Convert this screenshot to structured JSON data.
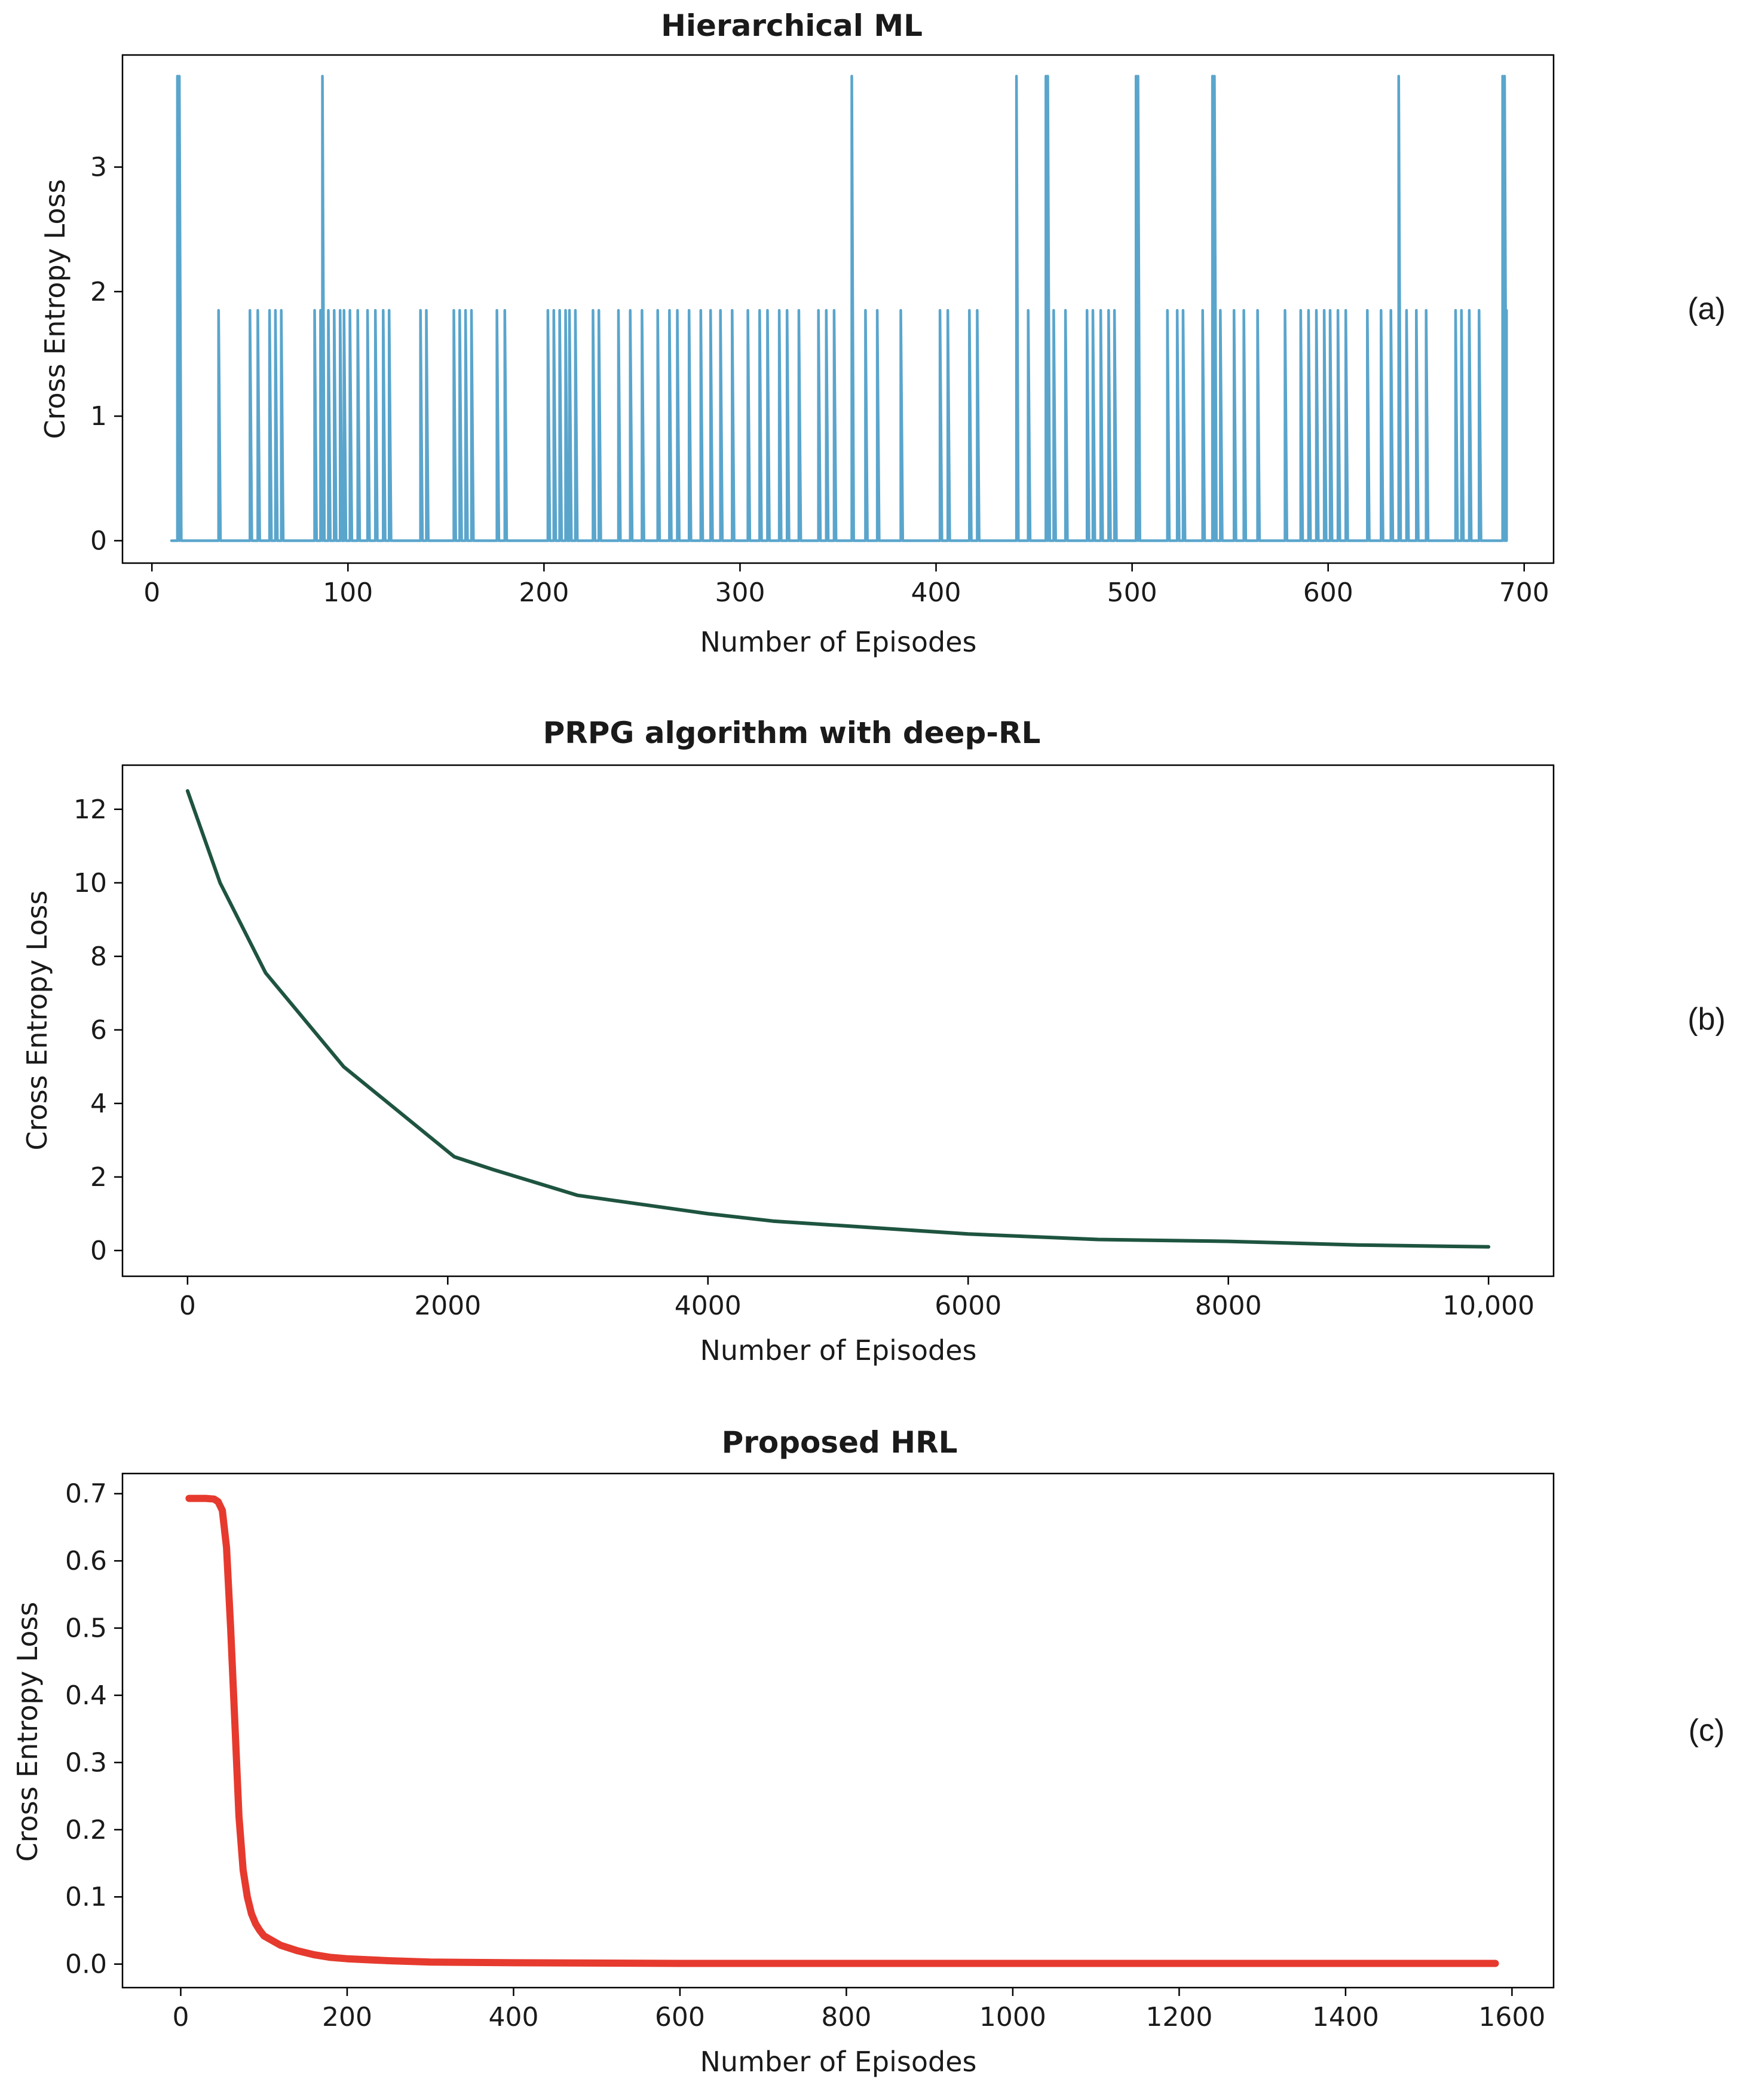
{
  "chart_data": [
    {
      "type": "line",
      "title": "Hierarchical ML",
      "panel_label": "(a)",
      "xlabel": "Number of Episodes",
      "ylabel": "Cross Entropy Loss",
      "xlim": [
        -15,
        715
      ],
      "ylim": [
        -0.18,
        3.9
      ],
      "xticks": [
        0,
        100,
        200,
        300,
        400,
        500,
        600,
        700
      ],
      "xtick_labels": [
        "0",
        "100",
        "200",
        "300",
        "400",
        "500",
        "600",
        "700"
      ],
      "yticks": [
        0,
        1,
        2,
        3
      ],
      "ytick_labels": [
        "0",
        "1",
        "2",
        "3"
      ],
      "grid": false,
      "color": "#5aa5cc",
      "line_width": 4.5,
      "x_range": [
        10,
        691
      ],
      "baseline": 0,
      "spikes": [
        [
          13,
          3.73
        ],
        [
          14,
          3.73
        ],
        [
          34,
          1.85
        ],
        [
          50,
          1.85
        ],
        [
          54,
          1.85
        ],
        [
          60,
          1.85
        ],
        [
          63,
          1.85
        ],
        [
          66,
          1.85
        ],
        [
          83,
          1.85
        ],
        [
          86,
          1.85
        ],
        [
          87,
          3.73
        ],
        [
          90,
          1.85
        ],
        [
          93,
          1.85
        ],
        [
          96,
          1.85
        ],
        [
          98,
          1.85
        ],
        [
          101,
          1.85
        ],
        [
          105,
          1.85
        ],
        [
          110,
          1.85
        ],
        [
          114,
          1.85
        ],
        [
          118,
          1.85
        ],
        [
          121,
          1.85
        ],
        [
          137,
          1.85
        ],
        [
          140,
          1.85
        ],
        [
          154,
          1.85
        ],
        [
          157,
          1.85
        ],
        [
          160,
          1.85
        ],
        [
          163,
          1.85
        ],
        [
          176,
          1.85
        ],
        [
          180,
          1.85
        ],
        [
          202,
          1.85
        ],
        [
          205,
          1.85
        ],
        [
          208,
          1.85
        ],
        [
          211,
          1.85
        ],
        [
          213,
          1.85
        ],
        [
          216,
          1.85
        ],
        [
          225,
          1.85
        ],
        [
          228,
          1.85
        ],
        [
          238,
          1.85
        ],
        [
          244,
          1.85
        ],
        [
          250,
          1.85
        ],
        [
          258,
          1.85
        ],
        [
          264,
          1.85
        ],
        [
          268,
          1.85
        ],
        [
          274,
          1.85
        ],
        [
          280,
          1.85
        ],
        [
          285,
          1.85
        ],
        [
          290,
          1.85
        ],
        [
          296,
          1.85
        ],
        [
          304,
          1.85
        ],
        [
          310,
          1.85
        ],
        [
          314,
          1.85
        ],
        [
          320,
          1.85
        ],
        [
          324,
          1.85
        ],
        [
          330,
          1.85
        ],
        [
          340,
          1.85
        ],
        [
          344,
          1.85
        ],
        [
          348,
          1.85
        ],
        [
          357,
          3.73
        ],
        [
          364,
          1.85
        ],
        [
          370,
          1.85
        ],
        [
          382,
          1.85
        ],
        [
          402,
          1.85
        ],
        [
          406,
          1.85
        ],
        [
          417,
          1.85
        ],
        [
          421,
          1.85
        ],
        [
          441,
          3.73
        ],
        [
          447,
          1.85
        ],
        [
          456,
          3.73
        ],
        [
          457,
          3.73
        ],
        [
          460,
          1.85
        ],
        [
          466,
          1.85
        ],
        [
          477,
          1.85
        ],
        [
          480,
          1.85
        ],
        [
          484,
          1.85
        ],
        [
          488,
          1.85
        ],
        [
          491,
          1.85
        ],
        [
          502,
          3.73
        ],
        [
          503,
          3.73
        ],
        [
          518,
          1.85
        ],
        [
          523,
          1.85
        ],
        [
          526,
          1.85
        ],
        [
          536,
          1.85
        ],
        [
          541,
          3.73
        ],
        [
          542,
          3.73
        ],
        [
          545,
          1.85
        ],
        [
          552,
          1.85
        ],
        [
          557,
          1.85
        ],
        [
          564,
          1.85
        ],
        [
          578,
          1.85
        ],
        [
          586,
          1.85
        ],
        [
          590,
          1.85
        ],
        [
          594,
          1.85
        ],
        [
          598,
          1.85
        ],
        [
          601,
          1.85
        ],
        [
          605,
          1.85
        ],
        [
          609,
          1.85
        ],
        [
          620,
          1.85
        ],
        [
          627,
          1.85
        ],
        [
          632,
          1.85
        ],
        [
          636,
          3.73
        ],
        [
          640,
          1.85
        ],
        [
          645,
          1.85
        ],
        [
          650,
          1.85
        ],
        [
          665,
          1.85
        ],
        [
          668,
          1.85
        ],
        [
          672,
          1.85
        ],
        [
          677,
          1.85
        ],
        [
          689,
          3.73
        ],
        [
          690,
          3.73
        ],
        [
          691,
          1.85
        ]
      ]
    },
    {
      "type": "line",
      "title": "PRPG algorithm with deep-RL",
      "panel_label": "(b)",
      "xlabel": "Number of Episodes",
      "ylabel": "Cross Entropy Loss",
      "xlim": [
        -500,
        10500
      ],
      "ylim": [
        -0.7,
        13.2
      ],
      "xticks": [
        0,
        2000,
        4000,
        6000,
        8000,
        10000
      ],
      "xtick_labels": [
        "0",
        "2000",
        "4000",
        "6000",
        "8000",
        "10,000"
      ],
      "yticks": [
        0,
        2,
        4,
        6,
        8,
        10,
        12
      ],
      "ytick_labels": [
        "0",
        "2",
        "4",
        "6",
        "8",
        "10",
        "12"
      ],
      "grid": false,
      "color": "#1e5440",
      "line_width": 6,
      "x": [
        0,
        250,
        600,
        1200,
        2050,
        2350,
        3000,
        4000,
        4500,
        6000,
        7000,
        8000,
        9000,
        10000
      ],
      "y": [
        12.5,
        10.0,
        7.55,
        5.0,
        2.55,
        2.2,
        1.5,
        1.0,
        0.8,
        0.45,
        0.3,
        0.25,
        0.15,
        0.1
      ]
    },
    {
      "type": "line",
      "title": "Proposed HRL",
      "panel_label": "(c)",
      "xlabel": "Number of Episodes",
      "ylabel": "Cross Entropy Loss",
      "xlim": [
        -70,
        1650
      ],
      "ylim": [
        -0.035,
        0.73
      ],
      "xticks": [
        0,
        200,
        400,
        600,
        800,
        1000,
        1200,
        1400,
        1600
      ],
      "xtick_labels": [
        "0",
        "200",
        "400",
        "600",
        "800",
        "1000",
        "1200",
        "1400",
        "1600"
      ],
      "yticks": [
        0.0,
        0.1,
        0.2,
        0.3,
        0.4,
        0.5,
        0.6,
        0.7
      ],
      "ytick_labels": [
        "0.0",
        "0.1",
        "0.2",
        "0.3",
        "0.4",
        "0.5",
        "0.6",
        "0.7"
      ],
      "grid": false,
      "color": "#e63a2e",
      "line_width": 12,
      "x": [
        10,
        20,
        30,
        40,
        45,
        50,
        55,
        60,
        65,
        70,
        75,
        80,
        85,
        90,
        95,
        100,
        110,
        120,
        140,
        160,
        180,
        200,
        250,
        300,
        400,
        600,
        800,
        1000,
        1200,
        1400,
        1580
      ],
      "y": [
        0.693,
        0.693,
        0.693,
        0.692,
        0.688,
        0.675,
        0.62,
        0.5,
        0.36,
        0.22,
        0.14,
        0.1,
        0.075,
        0.06,
        0.05,
        0.042,
        0.035,
        0.028,
        0.02,
        0.014,
        0.01,
        0.008,
        0.005,
        0.003,
        0.002,
        0.001,
        0.001,
        0.001,
        0.001,
        0.001,
        0.001
      ]
    }
  ]
}
